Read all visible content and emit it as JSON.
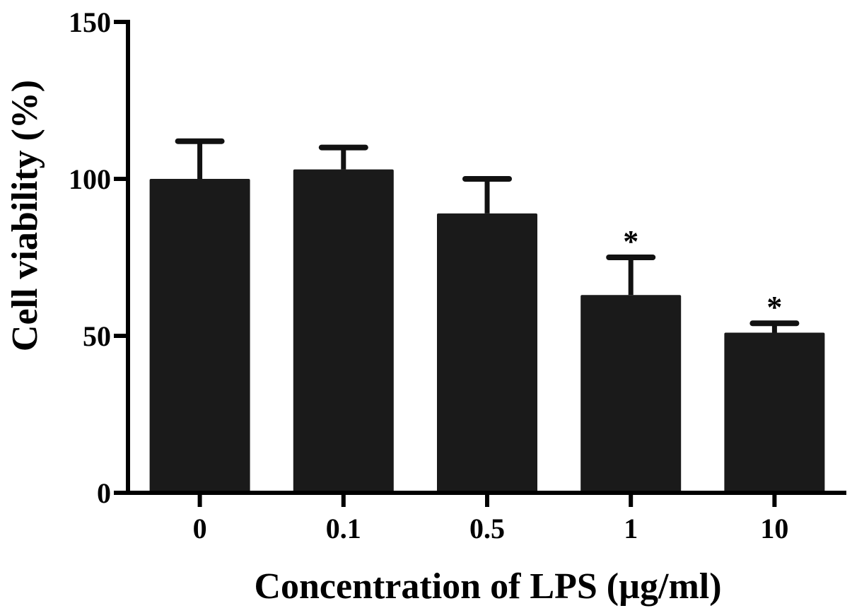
{
  "chart_data": {
    "type": "bar",
    "title": "",
    "xlabel": "Concentration of LPS (µg/ml)",
    "ylabel": "Cell viability (%)",
    "ylim": [
      0,
      150
    ],
    "yticks": [
      "0",
      "50",
      "100",
      "150"
    ],
    "categories": [
      "0",
      "0.1",
      "0.5",
      "1",
      "10"
    ],
    "values": [
      100,
      103,
      89,
      63,
      51
    ],
    "error_upper": [
      12,
      7,
      11,
      12,
      3
    ],
    "annotations": [
      "",
      "",
      "",
      "*",
      "*"
    ],
    "bar_color": "#1a1a1a",
    "grid": false,
    "legend": "none"
  }
}
